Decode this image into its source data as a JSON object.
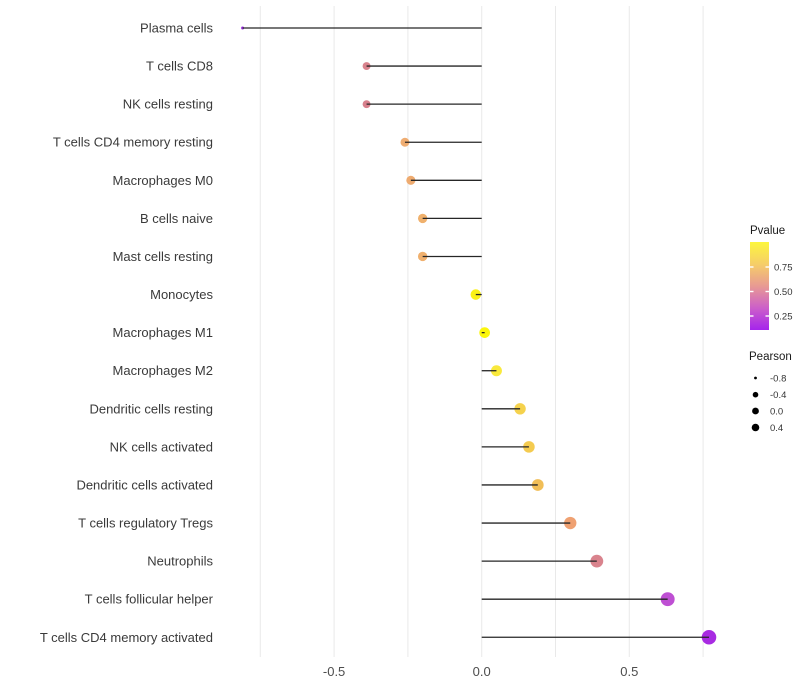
{
  "figure": {
    "background": "#ffffff",
    "panel_background": "#ffffff",
    "gridline_color": "#e9e9e9",
    "stem_color": "#262626",
    "category_label_color": "#3a3a3a",
    "tick_label_color": "#4d4d4d"
  },
  "chart_data": {
    "type": "scatter",
    "variant": "lollipop",
    "orientation": "horizontal",
    "title": "",
    "xlabel": "",
    "ylabel": "",
    "grid": true,
    "legend_position": "right",
    "xlim": [
      -0.85,
      0.85
    ],
    "baseline": 0,
    "gridline_values": [
      -0.75,
      -0.5,
      -0.25,
      0,
      0.25,
      0.5,
      0.75
    ],
    "x_ticks": [
      {
        "label": "-0.5",
        "value": -0.5
      },
      {
        "label": "0.0",
        "value": 0.0
      },
      {
        "label": "0.5",
        "value": 0.5
      }
    ],
    "categories": [
      "Plasma cells",
      "T cells CD8",
      "NK cells resting",
      "T cells CD4 memory resting",
      "Macrophages M0",
      "B cells naive",
      "Mast cells resting",
      "Monocytes",
      "Macrophages M1",
      "Macrophages M2",
      "Dendritic cells resting",
      "NK cells activated",
      "Dendritic cells activated",
      "T cells regulatory  Tregs",
      "Neutrophils",
      "T cells follicular helper",
      "T cells CD4 memory activated"
    ],
    "series": [
      {
        "name": "Pearson",
        "values": [
          -0.81,
          -0.39,
          -0.39,
          -0.26,
          -0.24,
          -0.2,
          -0.2,
          -0.02,
          0.01,
          0.05,
          0.13,
          0.16,
          0.19,
          0.3,
          0.39,
          0.63,
          0.77
        ]
      }
    ],
    "point_colors": [
      "#9c2ee3",
      "#d9838d",
      "#d8808c",
      "#efad72",
      "#eeab70",
      "#f0b16d",
      "#f0b06e",
      "#fbf116",
      "#fcf60c",
      "#f9e93c",
      "#f5d24d",
      "#f4cb50",
      "#f1be57",
      "#efa172",
      "#d9838d",
      "#be4fd3",
      "#a82be2"
    ]
  },
  "legend": {
    "pvalue": {
      "title": "Pvalue",
      "tick_labels": [
        "0.75",
        "0.50",
        "0.25"
      ],
      "gradient_top_to_bottom": [
        "#fcf63d",
        "#f6ce68",
        "#e89a93",
        "#cc5fc9",
        "#a524ec"
      ]
    },
    "pearson": {
      "title": "Pearson",
      "dot_color": "#000000",
      "items": [
        {
          "label": "-0.8",
          "radius": 1.4
        },
        {
          "label": "-0.4",
          "radius": 2.8
        },
        {
          "label": "0.0",
          "radius": 3.4
        },
        {
          "label": "0.4",
          "radius": 3.8
        }
      ]
    }
  }
}
